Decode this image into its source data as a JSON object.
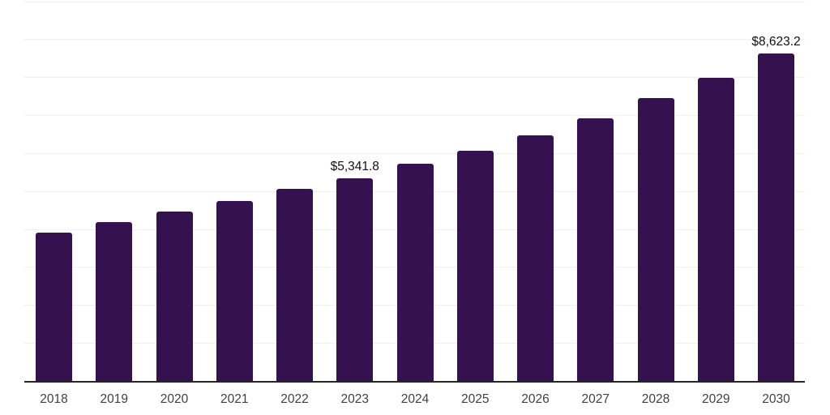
{
  "chart_data": {
    "type": "bar",
    "title": "",
    "xlabel": "",
    "ylabel": "",
    "categories": [
      "2018",
      "2019",
      "2020",
      "2021",
      "2022",
      "2023",
      "2024",
      "2025",
      "2026",
      "2027",
      "2028",
      "2029",
      "2030"
    ],
    "values": [
      3900,
      4175,
      4460,
      4735,
      5060,
      5341.8,
      5720,
      6060,
      6470,
      6920,
      7450,
      7990,
      8623.2
    ],
    "value_labels": [
      {
        "category": "2023",
        "text": "$5,341.8"
      },
      {
        "category": "2030",
        "text": "$8,623.2"
      }
    ],
    "ylim": [
      0,
      10000
    ],
    "gridline_interval": 1000,
    "grid": "horizontal-only",
    "legend": "none",
    "y_tick_labels_visible": false,
    "colors": {
      "bar": "#36114f",
      "gridline": "#f0f0f0",
      "axis_line": "#262626",
      "tick_label": "#404040",
      "value_label": "#111111",
      "background": "#ffffff"
    }
  }
}
